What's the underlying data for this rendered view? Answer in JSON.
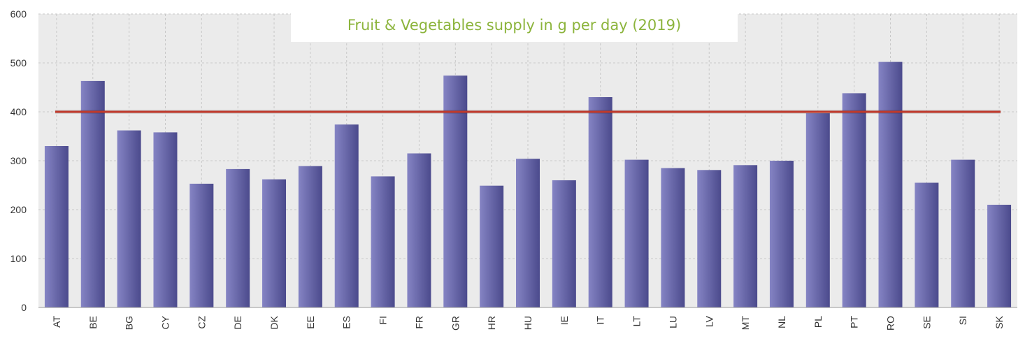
{
  "chart_data": {
    "type": "bar",
    "title": "Fruit & Vegetables supply in g per day (2019)",
    "xlabel": "",
    "ylabel": "",
    "categories": [
      "AT",
      "BE",
      "BG",
      "CY",
      "CZ",
      "DE",
      "DK",
      "EE",
      "ES",
      "FI",
      "FR",
      "GR",
      "HR",
      "HU",
      "IE",
      "IT",
      "LT",
      "LU",
      "LV",
      "MT",
      "NL",
      "PL",
      "PT",
      "RO",
      "SE",
      "SI",
      "SK"
    ],
    "values": [
      330,
      463,
      362,
      358,
      253,
      283,
      262,
      289,
      374,
      268,
      315,
      474,
      249,
      304,
      260,
      430,
      302,
      285,
      281,
      291,
      300,
      397,
      438,
      502,
      255,
      302,
      210
    ],
    "ylim": [
      0,
      600
    ],
    "yticks": [
      0,
      100,
      200,
      300,
      400,
      500,
      600
    ],
    "reference_line": {
      "value": 400,
      "color": "#c0392b"
    },
    "grid": true,
    "colors": {
      "bar_dark": "#4b4a8c",
      "bar_light": "#8584c4",
      "plot_bg": "#ebebeb",
      "title": "#8cb43c"
    }
  }
}
